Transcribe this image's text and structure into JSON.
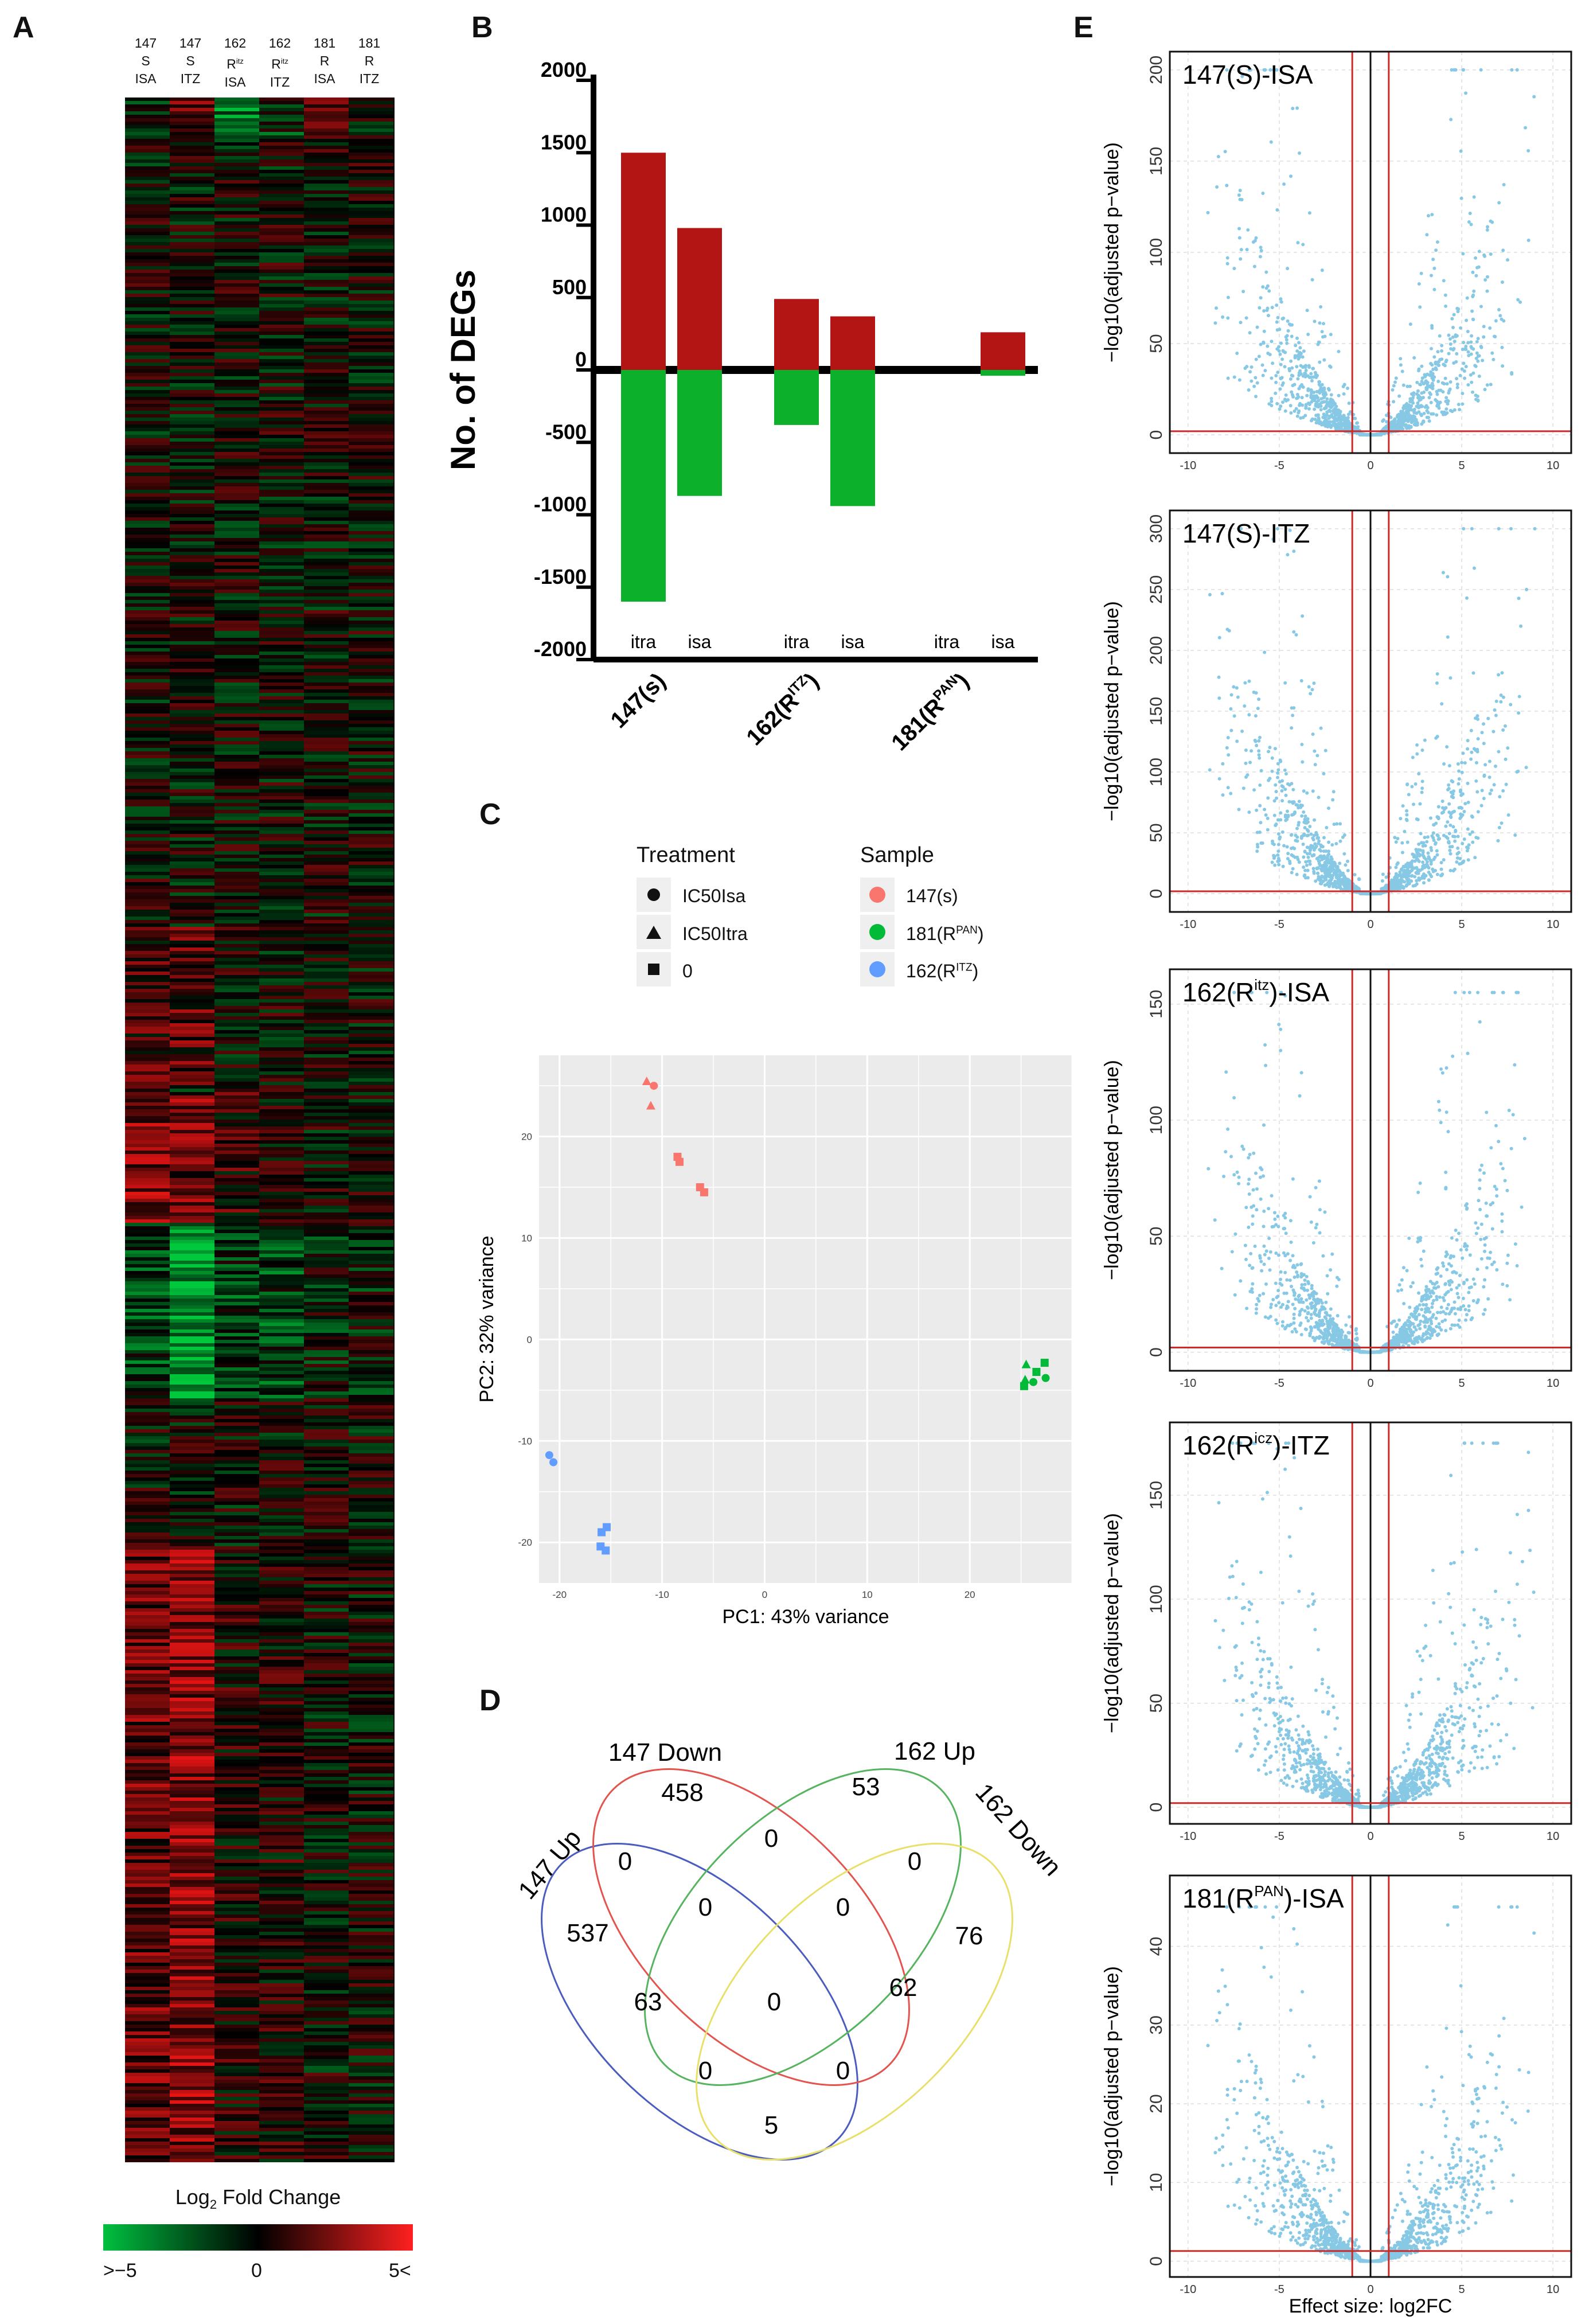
{
  "panels": {
    "A": "A",
    "B": "B",
    "C": "C",
    "D": "D",
    "E": "E"
  },
  "heatmap": {
    "columns": [
      {
        "l1": "147",
        "l2": "S",
        "l3": "ISA"
      },
      {
        "l1": "147",
        "l2": "S",
        "l3": "ITZ"
      },
      {
        "l1": "162",
        "l2": "R",
        "l2sup": "itz",
        "l3": "ISA"
      },
      {
        "l1": "162",
        "l2": "R",
        "l2sup": "itz",
        "l3": "ITZ"
      },
      {
        "l1": "181",
        "l2": "R",
        "l3": "ISA"
      },
      {
        "l1": "181",
        "l2": "R",
        "l3": "ITZ"
      }
    ],
    "legend": {
      "title": "Log",
      "title_sub": "2",
      "title_rest": " Fold Change",
      "min_label": ">−5",
      "mid_label": "0",
      "max_label": "5<"
    },
    "colors": {
      "low": "#00c040",
      "mid": "#000000",
      "high": "#ff2020"
    }
  },
  "chart_data": [
    {
      "type": "bar",
      "panel": "B",
      "ylabel": "No. of DEGs",
      "ylim": [
        -2000,
        2000
      ],
      "yticks": [
        2000,
        1500,
        1000,
        500,
        0,
        -500,
        -1000,
        -1500,
        -2000
      ],
      "groups": [
        {
          "name": "147(s)",
          "bars": [
            {
              "label": "itra",
              "up": 1500,
              "down": -1600
            },
            {
              "label": "isa",
              "up": 980,
              "down": -870
            }
          ]
        },
        {
          "name": "162(R",
          "name_sup": "ITZ",
          "name_end": ")",
          "bars": [
            {
              "label": "itra",
              "up": 490,
              "down": -380
            },
            {
              "label": "isa",
              "up": 370,
              "down": -940
            }
          ]
        },
        {
          "name": "181(R",
          "name_sup": "PAN",
          "name_end": ")",
          "bars": [
            {
              "label": "itra",
              "up": 0,
              "down": 0
            },
            {
              "label": "isa",
              "up": 260,
              "down": -40
            }
          ]
        }
      ],
      "colors": {
        "up": "#b31515",
        "down": "#0db02b"
      }
    },
    {
      "type": "scatter",
      "panel": "C",
      "xlabel": "PC1: 43% variance",
      "ylabel": "PC2: 32% variance",
      "xlim": [
        -22,
        30
      ],
      "ylim": [
        -24,
        28
      ],
      "xticks": [
        -20,
        -10,
        0,
        10,
        20
      ],
      "yticks": [
        20,
        10,
        0,
        -10,
        -20
      ],
      "legend": {
        "treatment_title": "Treatment",
        "treatments": [
          {
            "label": "IC50Isa",
            "shape": "circle"
          },
          {
            "label": "IC50Itra",
            "shape": "triangle"
          },
          {
            "label": "0",
            "shape": "square"
          }
        ],
        "sample_title": "Sample",
        "samples": [
          {
            "label": "147(s)",
            "color": "#f8766d"
          },
          {
            "label": "181(R",
            "sup": "PAN",
            "end": ")",
            "color": "#00ba38"
          },
          {
            "label": "162(R",
            "sup": "ITZ",
            "end": ")",
            "color": "#619cff"
          }
        ]
      },
      "points": [
        {
          "x": -11.5,
          "y": 25.4,
          "shape": "triangle",
          "sample": "147(s)"
        },
        {
          "x": -10.8,
          "y": 25.0,
          "shape": "circle",
          "sample": "147(s)"
        },
        {
          "x": -11.1,
          "y": 23.0,
          "shape": "triangle",
          "sample": "147(s)"
        },
        {
          "x": -8.5,
          "y": 18.0,
          "shape": "square",
          "sample": "147(s)"
        },
        {
          "x": -8.3,
          "y": 17.5,
          "shape": "square",
          "sample": "147(s)"
        },
        {
          "x": -6.3,
          "y": 15.0,
          "shape": "square",
          "sample": "147(s)"
        },
        {
          "x": -5.9,
          "y": 14.5,
          "shape": "square",
          "sample": "147(s)"
        },
        {
          "x": 25.5,
          "y": -2.5,
          "shape": "triangle",
          "sample": "181(R PAN)"
        },
        {
          "x": 26.5,
          "y": -3.2,
          "shape": "square",
          "sample": "181(R PAN)"
        },
        {
          "x": 27.3,
          "y": -2.3,
          "shape": "square",
          "sample": "181(R PAN)"
        },
        {
          "x": 25.4,
          "y": -4.0,
          "shape": "triangle",
          "sample": "181(R PAN)"
        },
        {
          "x": 27.4,
          "y": -3.8,
          "shape": "circle",
          "sample": "181(R PAN)"
        },
        {
          "x": 26.2,
          "y": -4.2,
          "shape": "circle",
          "sample": "181(R PAN)"
        },
        {
          "x": 25.3,
          "y": -4.6,
          "shape": "square",
          "sample": "181(R PAN)"
        },
        {
          "x": -21.0,
          "y": -11.4,
          "shape": "circle",
          "sample": "162(R ITZ)"
        },
        {
          "x": -20.6,
          "y": -12.1,
          "shape": "circle",
          "sample": "162(R ITZ)"
        },
        {
          "x": -15.4,
          "y": -18.5,
          "shape": "square",
          "sample": "162(R ITZ)"
        },
        {
          "x": -15.9,
          "y": -19.0,
          "shape": "square",
          "sample": "162(R ITZ)"
        },
        {
          "x": -16.0,
          "y": -20.4,
          "shape": "square",
          "sample": "162(R ITZ)"
        },
        {
          "x": -15.5,
          "y": -20.8,
          "shape": "square",
          "sample": "162(R ITZ)"
        }
      ]
    },
    {
      "type": "scatter",
      "panel": "E",
      "xlabel": "Effect size: log2FC",
      "ylabel": "−log10(adjusted p−value)",
      "xlim": [
        -11,
        11
      ],
      "xticks": [
        -10,
        -5,
        0,
        5,
        10
      ],
      "thresholds": {
        "x": [
          -1,
          1
        ]
      },
      "plots": [
        {
          "title": "147(S)-ISA",
          "ylim": [
            -10,
            210
          ],
          "yticks": [
            0,
            50,
            100,
            150,
            200
          ],
          "hline": 2,
          "max": 200
        },
        {
          "title": "147(S)-ITZ",
          "ylim": [
            -15,
            315
          ],
          "yticks": [
            0,
            50,
            100,
            150,
            200,
            250,
            300
          ],
          "hline": 2,
          "max": 300
        },
        {
          "title": "162(R",
          "title_sup": "itz",
          "title_end": ")-ISA",
          "ylim": [
            -8,
            165
          ],
          "yticks": [
            0,
            50,
            100,
            150
          ],
          "hline": 2,
          "max": 155
        },
        {
          "title": "162(R",
          "title_sup": "icz",
          "title_end": ")-ITZ",
          "ylim": [
            -8,
            185
          ],
          "yticks": [
            0,
            50,
            100,
            150
          ],
          "hline": 2,
          "max": 175
        },
        {
          "title": "181(R",
          "title_sup": "PAN",
          "title_end": ")-ISA",
          "ylim": [
            -2,
            49
          ],
          "yticks": [
            0,
            10,
            20,
            30,
            40
          ],
          "hline": 1.3,
          "max": 45
        }
      ],
      "colors": {
        "points": "#87c8e4",
        "threshold": "#cc2b2b",
        "center": "#111111"
      }
    }
  ],
  "venn": {
    "sets": [
      "147 Up",
      "147 Down",
      "162 Up",
      "162 Down"
    ],
    "colors": [
      "#4b5cbf",
      "#e2544d",
      "#56b35f",
      "#e8e06a"
    ],
    "counts": [
      {
        "id": "a",
        "v": "537"
      },
      {
        "id": "b",
        "v": "458"
      },
      {
        "id": "c",
        "v": "53"
      },
      {
        "id": "d",
        "v": "76"
      },
      {
        "id": "e",
        "v": "0"
      },
      {
        "id": "f",
        "v": "0"
      },
      {
        "id": "g",
        "v": "0"
      },
      {
        "id": "h",
        "v": "0"
      },
      {
        "id": "i",
        "v": "0"
      },
      {
        "id": "j",
        "v": "63"
      },
      {
        "id": "k",
        "v": "0"
      },
      {
        "id": "l",
        "v": "62"
      },
      {
        "id": "m",
        "v": "0"
      },
      {
        "id": "n",
        "v": "0"
      },
      {
        "id": "o",
        "v": "5"
      }
    ]
  }
}
